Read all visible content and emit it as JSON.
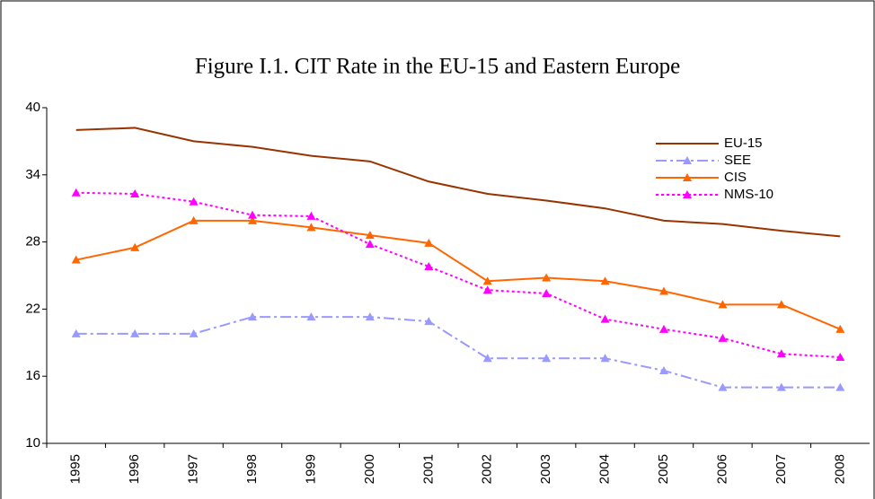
{
  "chart_data": {
    "type": "line",
    "title": "Figure I.1. CIT Rate in the EU-15 and Eastern Europe",
    "categories": [
      "1995",
      "1996",
      "1997",
      "1998",
      "1999",
      "2000",
      "2001",
      "2002",
      "2003",
      "2004",
      "2005",
      "2006",
      "2007",
      "2008"
    ],
    "ylim": [
      10,
      40
    ],
    "yticks": [
      10,
      16,
      22,
      28,
      34,
      40
    ],
    "series": [
      {
        "name": "EU-15",
        "color": "#993300",
        "marker": "none",
        "dash": "solid",
        "values": [
          38.0,
          38.2,
          37.0,
          36.5,
          35.7,
          35.2,
          33.4,
          32.3,
          31.7,
          31.0,
          29.9,
          29.6,
          29.0,
          28.5
        ]
      },
      {
        "name": "SEE",
        "color": "#9999ff",
        "marker": "triangle",
        "dash": "dashdot",
        "values": [
          19.8,
          19.8,
          19.8,
          21.3,
          21.3,
          21.3,
          20.9,
          17.6,
          17.6,
          17.6,
          16.5,
          15.0,
          15.0,
          15.0
        ]
      },
      {
        "name": "CIS",
        "color": "#ff6600",
        "marker": "triangle",
        "dash": "solid",
        "values": [
          26.4,
          27.5,
          29.9,
          29.9,
          29.3,
          28.6,
          27.9,
          24.5,
          24.8,
          24.5,
          23.6,
          22.4,
          22.4,
          20.2
        ]
      },
      {
        "name": "NMS-10",
        "color": "#ff00ff",
        "marker": "triangle",
        "dash": "dotted",
        "values": [
          32.4,
          32.3,
          31.6,
          30.4,
          30.3,
          27.8,
          25.8,
          23.7,
          23.4,
          21.1,
          20.2,
          19.4,
          18.0,
          17.7
        ]
      }
    ],
    "legend": "top-right"
  }
}
